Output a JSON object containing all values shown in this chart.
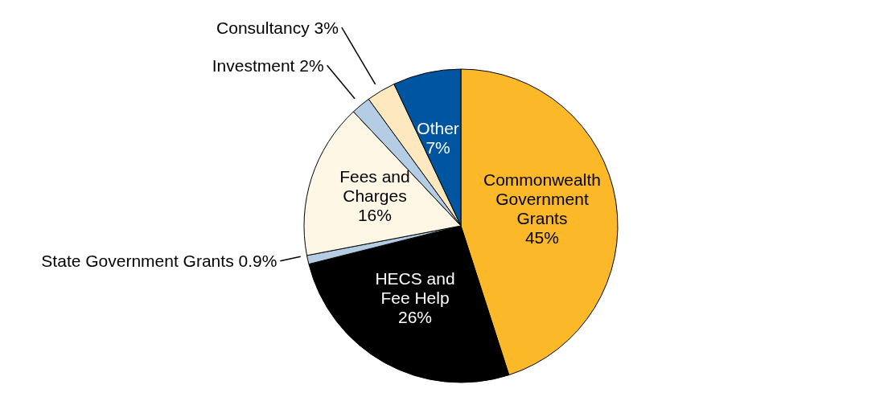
{
  "chart_data": {
    "type": "pie",
    "categories": [
      "Commonwealth Government Grants",
      "HECS and Fee Help",
      "State Government Grants",
      "Fees and Charges",
      "Investment",
      "Consultancy",
      "Other"
    ],
    "values": [
      45,
      26,
      0.9,
      16,
      2,
      3,
      7
    ],
    "value_labels": [
      "45%",
      "26%",
      "0.9%",
      "16%",
      "2%",
      "3%",
      "7%"
    ],
    "colors": [
      "#fbb829",
      "#000000",
      "#b4cce4",
      "#fef7e6",
      "#b4cce4",
      "#fde8c0",
      "#0055a0"
    ]
  }
}
